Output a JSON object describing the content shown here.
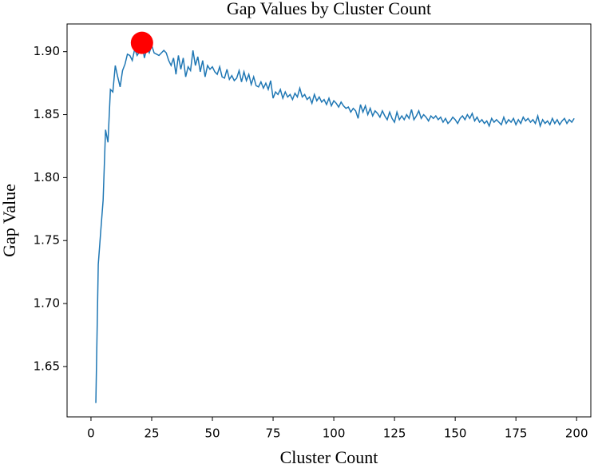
{
  "chart_data": {
    "type": "line",
    "title": "Gap Values by Cluster Count",
    "x_label": "Cluster Count",
    "y_label": "Gap Value",
    "x": [
      2,
      3,
      4,
      5,
      6,
      7,
      8,
      9,
      10,
      11,
      12,
      13,
      14,
      15,
      16,
      17,
      18,
      19,
      20,
      21,
      22,
      23,
      24,
      25,
      26,
      27,
      28,
      29,
      30,
      31,
      32,
      33,
      34,
      35,
      36,
      37,
      38,
      39,
      40,
      41,
      42,
      43,
      44,
      45,
      46,
      47,
      48,
      49,
      50,
      51,
      52,
      53,
      54,
      55,
      56,
      57,
      58,
      59,
      60,
      61,
      62,
      63,
      64,
      65,
      66,
      67,
      68,
      69,
      70,
      71,
      72,
      73,
      74,
      75,
      76,
      77,
      78,
      79,
      80,
      81,
      82,
      83,
      84,
      85,
      86,
      87,
      88,
      89,
      90,
      91,
      92,
      93,
      94,
      95,
      96,
      97,
      98,
      99,
      100,
      101,
      102,
      103,
      104,
      105,
      106,
      107,
      108,
      109,
      110,
      111,
      112,
      113,
      114,
      115,
      116,
      117,
      118,
      119,
      120,
      121,
      122,
      123,
      124,
      125,
      126,
      127,
      128,
      129,
      130,
      131,
      132,
      133,
      134,
      135,
      136,
      137,
      138,
      139,
      140,
      141,
      142,
      143,
      144,
      145,
      146,
      147,
      148,
      149,
      150,
      151,
      152,
      153,
      154,
      155,
      156,
      157,
      158,
      159,
      160,
      161,
      162,
      163,
      164,
      165,
      166,
      167,
      168,
      169,
      170,
      171,
      172,
      173,
      174,
      175,
      176,
      177,
      178,
      179,
      180,
      181,
      182,
      183,
      184,
      185,
      186,
      187,
      188,
      189,
      190,
      191,
      192,
      193,
      194,
      195,
      196,
      197,
      198,
      199
    ],
    "series": [
      {
        "color": "#1f77b4",
        "values": [
          1.621,
          1.731,
          1.757,
          1.782,
          1.838,
          1.828,
          1.87,
          1.868,
          1.889,
          1.88,
          1.872,
          1.885,
          1.89,
          1.898,
          1.897,
          1.893,
          1.902,
          1.897,
          1.9,
          1.907,
          1.895,
          1.903,
          1.899,
          1.905,
          1.899,
          1.898,
          1.897,
          1.899,
          1.901,
          1.899,
          1.893,
          1.889,
          1.895,
          1.882,
          1.897,
          1.886,
          1.895,
          1.88,
          1.888,
          1.885,
          1.901,
          1.889,
          1.896,
          1.884,
          1.893,
          1.88,
          1.889,
          1.886,
          1.888,
          1.884,
          1.882,
          1.888,
          1.88,
          1.879,
          1.886,
          1.878,
          1.881,
          1.877,
          1.879,
          1.885,
          1.876,
          1.884,
          1.877,
          1.882,
          1.874,
          1.88,
          1.873,
          1.872,
          1.876,
          1.871,
          1.875,
          1.87,
          1.877,
          1.863,
          1.868,
          1.866,
          1.87,
          1.863,
          1.868,
          1.864,
          1.866,
          1.862,
          1.867,
          1.864,
          1.871,
          1.864,
          1.866,
          1.862,
          1.864,
          1.859,
          1.866,
          1.861,
          1.864,
          1.86,
          1.862,
          1.858,
          1.863,
          1.857,
          1.861,
          1.859,
          1.856,
          1.86,
          1.857,
          1.855,
          1.856,
          1.852,
          1.855,
          1.853,
          1.847,
          1.858,
          1.852,
          1.857,
          1.85,
          1.855,
          1.849,
          1.853,
          1.851,
          1.848,
          1.853,
          1.849,
          1.846,
          1.852,
          1.847,
          1.844,
          1.852,
          1.846,
          1.849,
          1.846,
          1.85,
          1.847,
          1.854,
          1.846,
          1.849,
          1.853,
          1.847,
          1.85,
          1.848,
          1.845,
          1.849,
          1.847,
          1.849,
          1.846,
          1.848,
          1.844,
          1.847,
          1.843,
          1.845,
          1.848,
          1.846,
          1.843,
          1.847,
          1.849,
          1.846,
          1.85,
          1.847,
          1.851,
          1.845,
          1.848,
          1.844,
          1.846,
          1.843,
          1.845,
          1.841,
          1.847,
          1.844,
          1.846,
          1.844,
          1.842,
          1.848,
          1.843,
          1.846,
          1.844,
          1.847,
          1.842,
          1.846,
          1.843,
          1.848,
          1.845,
          1.847,
          1.844,
          1.846,
          1.843,
          1.849,
          1.841,
          1.846,
          1.843,
          1.845,
          1.842,
          1.847,
          1.843,
          1.846,
          1.842,
          1.845,
          1.847,
          1.843,
          1.846,
          1.844,
          1.847
        ]
      }
    ],
    "highlight": {
      "x": 21,
      "y": 1.907,
      "color": "#ff0000"
    },
    "xlim": [
      -9.85,
      205.85
    ],
    "xticks": [
      0,
      25,
      50,
      75,
      100,
      125,
      150,
      175,
      200
    ],
    "ylim": [
      1.61,
      1.922
    ],
    "yticks": [
      {
        "value": 1.65,
        "label": "1.65"
      },
      {
        "value": 1.7,
        "label": "1.70"
      },
      {
        "value": 1.75,
        "label": "1.75"
      },
      {
        "value": 1.8,
        "label": "1.80"
      },
      {
        "value": 1.85,
        "label": "1.85"
      },
      {
        "value": 1.9,
        "label": "1.90"
      }
    ]
  }
}
